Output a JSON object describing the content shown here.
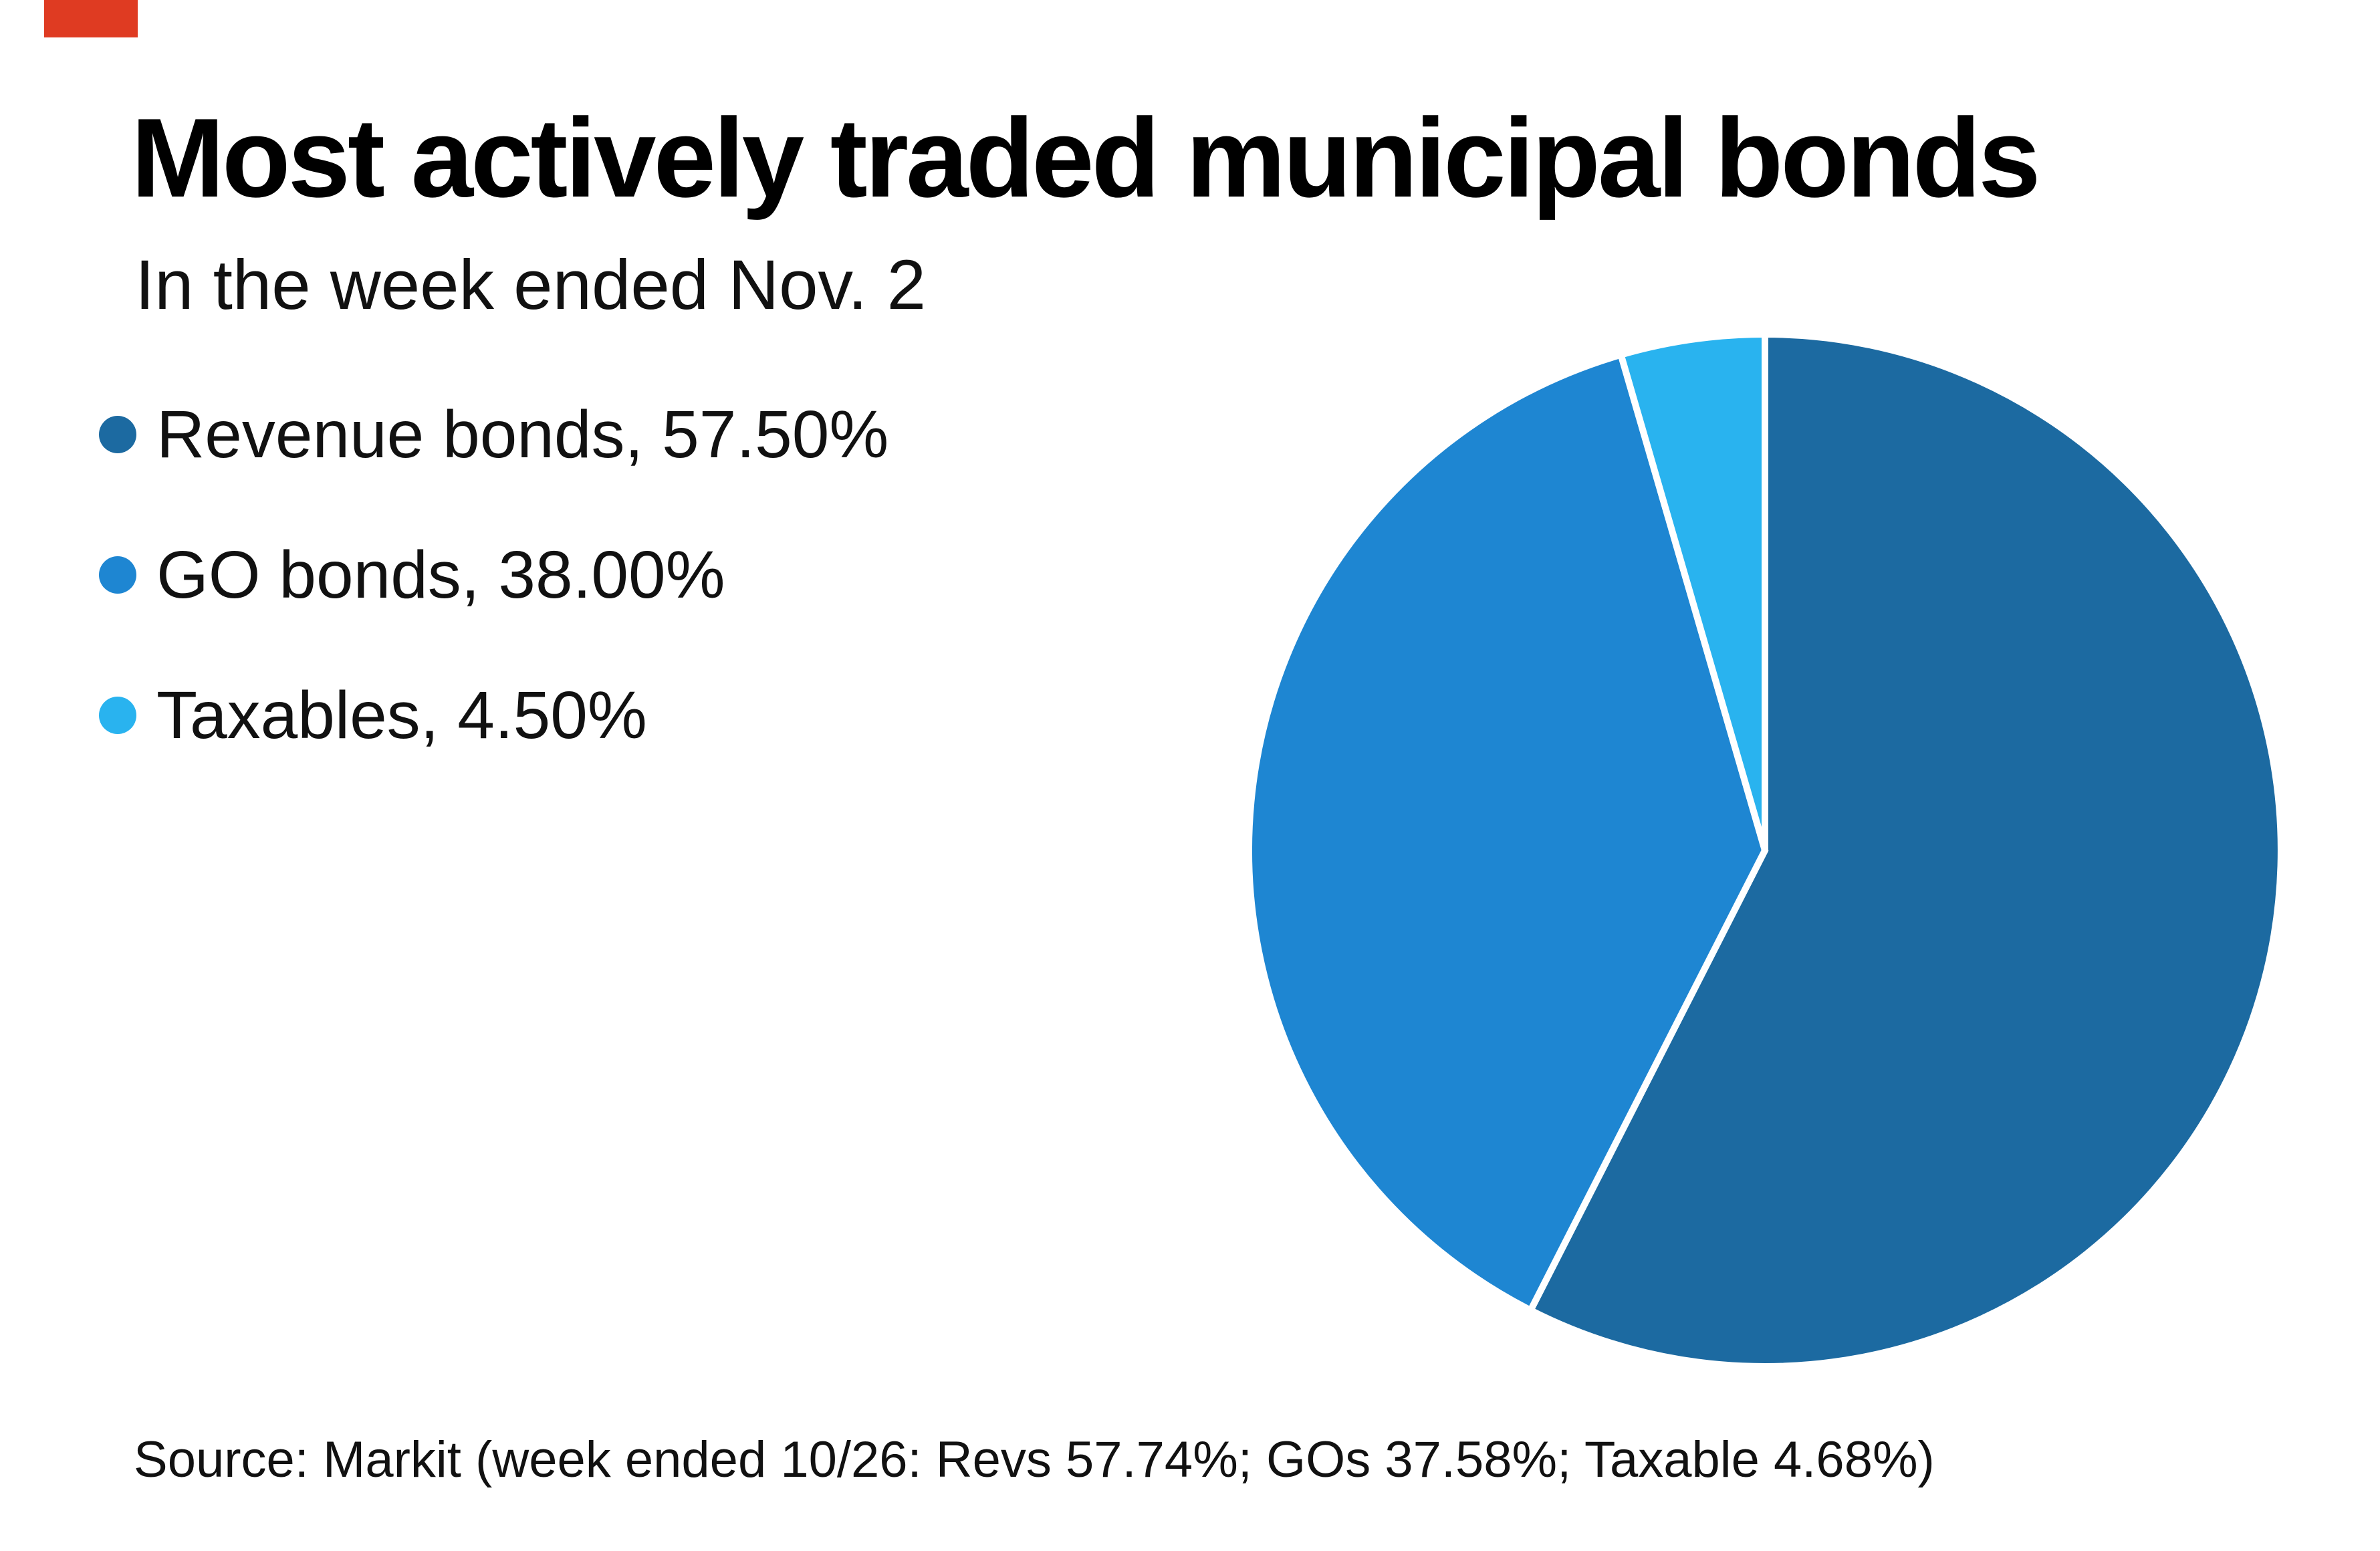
{
  "brand": {
    "accent_color": "#df3b22"
  },
  "header": {
    "title": "Most actively traded municipal bonds",
    "subtitle": "In the week ended Nov. 2"
  },
  "footer": {
    "source": "Source: Markit (week ended 10/26: Revs 57.74%; GOs 37.58%; Taxable 4.68%)"
  },
  "chart_data": {
    "type": "pie",
    "title": "Most actively traded municipal bonds",
    "subtitle": "In the week ended Nov. 2",
    "start_angle_deg": 0,
    "direction": "clockwise",
    "legend_position": "left",
    "separator_color": "#ffffff",
    "separator_width": 10,
    "slices": [
      {
        "label": "Revenue bonds",
        "value": 57.5,
        "display": "Revenue bonds, 57.50%",
        "color": "#1c6aa1"
      },
      {
        "label": "GO bonds",
        "value": 38.0,
        "display": "GO bonds, 38.00%",
        "color": "#1e86d2"
      },
      {
        "label": "Taxables",
        "value": 4.5,
        "display": "Taxables, 4.50%",
        "color": "#29b3ef"
      }
    ],
    "prior_week_note": {
      "week_ended": "10/26",
      "revs_pct": 57.74,
      "gos_pct": 37.58,
      "taxable_pct": 4.68
    }
  }
}
